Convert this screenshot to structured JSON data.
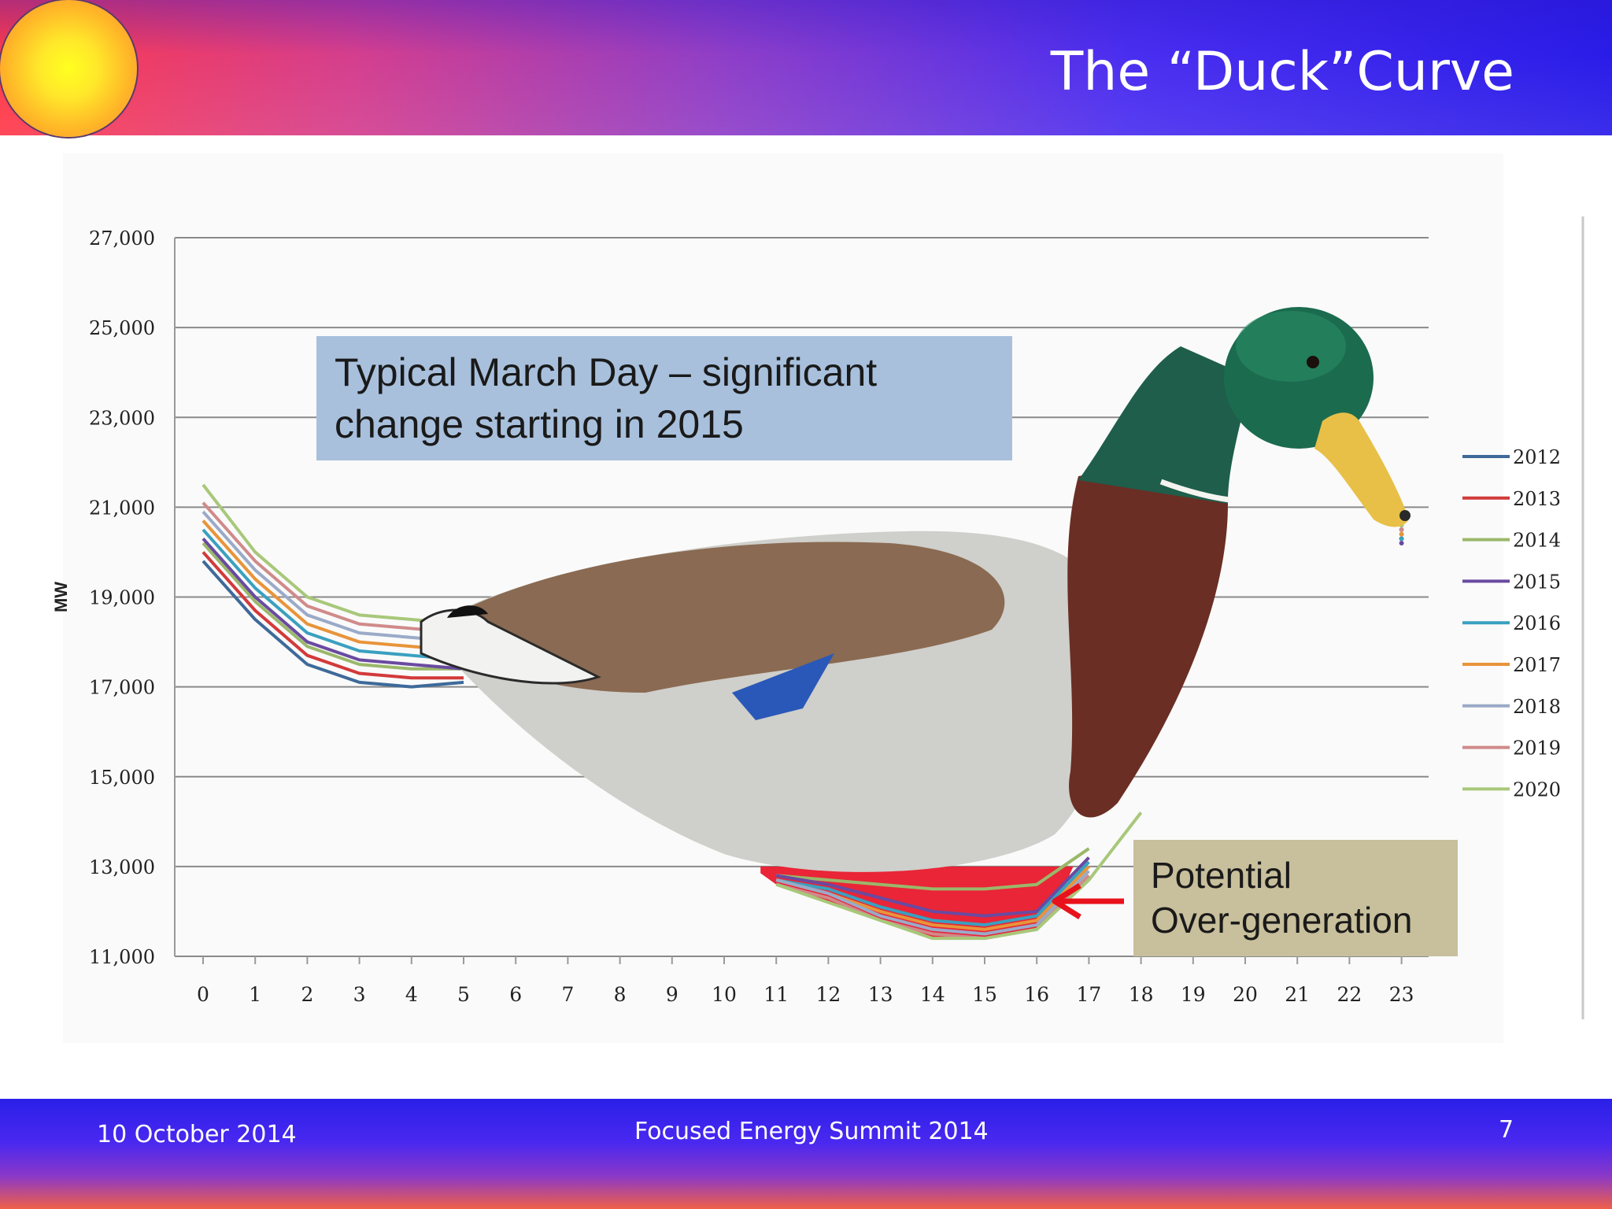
{
  "slide": {
    "title": "The “Duck”Curve",
    "footer_date": "10 October 2014",
    "footer_event": "Focused Energy Summit  2014",
    "page_number": "7"
  },
  "colors": {
    "gridline": "#8a8a8a",
    "overgen_fill": "#e8192c",
    "callout_blue": "#a8c0dc",
    "callout_tan": "#c8bf9c",
    "arrow": "#e8121c"
  },
  "chart_data": {
    "type": "line",
    "ylabel": "MW",
    "xlabel": "",
    "ylim": [
      11000,
      27000
    ],
    "yticks": [
      "11,000",
      "13,000",
      "15,000",
      "17,000",
      "19,000",
      "21,000",
      "23,000",
      "25,000",
      "27,000"
    ],
    "categories": [
      "0",
      "1",
      "2",
      "3",
      "4",
      "5",
      "6",
      "7",
      "8",
      "9",
      "10",
      "11",
      "12",
      "13",
      "14",
      "15",
      "16",
      "17",
      "18",
      "19",
      "20",
      "21",
      "22",
      "23"
    ],
    "grid": true,
    "legend_position": "right",
    "series": [
      {
        "name": "2012",
        "color": "#3e6a9a",
        "values": [
          19800,
          18500,
          17500,
          17100,
          17000,
          17100,
          null,
          null,
          null,
          null,
          null,
          null,
          null,
          null,
          null,
          null,
          null,
          null,
          null,
          null,
          null,
          null,
          null,
          20300
        ]
      },
      {
        "name": "2013",
        "color": "#d23a3a",
        "values": [
          20000,
          18700,
          17700,
          17300,
          17200,
          17200,
          null,
          null,
          null,
          null,
          null,
          null,
          null,
          null,
          null,
          null,
          null,
          null,
          null,
          null,
          null,
          null,
          null,
          20300
        ]
      },
      {
        "name": "2014",
        "color": "#9ab86a",
        "values": [
          20200,
          18900,
          17900,
          17500,
          17400,
          17400,
          null,
          null,
          null,
          null,
          null,
          12800,
          12700,
          12600,
          12500,
          12500,
          12600,
          13400,
          null,
          null,
          null,
          null,
          null,
          20300
        ]
      },
      {
        "name": "2015",
        "color": "#6a4aa0",
        "values": [
          20300,
          19000,
          18000,
          17600,
          17500,
          17400,
          null,
          null,
          null,
          null,
          null,
          12800,
          12600,
          12300,
          12000,
          11900,
          12000,
          13200,
          null,
          null,
          null,
          null,
          null,
          20200
        ]
      },
      {
        "name": "2016",
        "color": "#3aa0c0",
        "values": [
          20500,
          19200,
          18200,
          17800,
          17700,
          17600,
          null,
          null,
          null,
          null,
          null,
          12700,
          12500,
          12100,
          11800,
          11700,
          11900,
          13100,
          null,
          null,
          null,
          null,
          null,
          20300
        ]
      },
      {
        "name": "2017",
        "color": "#e8943a",
        "values": [
          20700,
          19400,
          18400,
          18000,
          17900,
          17800,
          null,
          null,
          null,
          null,
          null,
          12700,
          12400,
          12000,
          11700,
          11600,
          11800,
          13000,
          null,
          null,
          null,
          null,
          null,
          20400
        ]
      },
      {
        "name": "2018",
        "color": "#9aaac8",
        "values": [
          20900,
          19600,
          18600,
          18200,
          18100,
          18000,
          null,
          null,
          null,
          null,
          null,
          12700,
          12400,
          11900,
          11600,
          11500,
          11700,
          12900,
          null,
          null,
          null,
          null,
          null,
          20500
        ]
      },
      {
        "name": "2019",
        "color": "#d08a8a",
        "values": [
          21100,
          19800,
          18800,
          18400,
          18300,
          18200,
          null,
          null,
          null,
          null,
          null,
          12600,
          12300,
          11800,
          11500,
          11400,
          11600,
          12800,
          null,
          null,
          null,
          null,
          null,
          20500
        ]
      },
      {
        "name": "2020",
        "color": "#a8c87a",
        "values": [
          21500,
          20000,
          19000,
          18600,
          18500,
          18400,
          null,
          null,
          null,
          null,
          null,
          12600,
          12200,
          11800,
          11400,
          11400,
          11600,
          12700,
          14200,
          null,
          null,
          null,
          null,
          20600
        ]
      }
    ],
    "annotations": [
      "Typical March Day – significant change starting in 2015",
      "Potential Over-generation"
    ]
  }
}
